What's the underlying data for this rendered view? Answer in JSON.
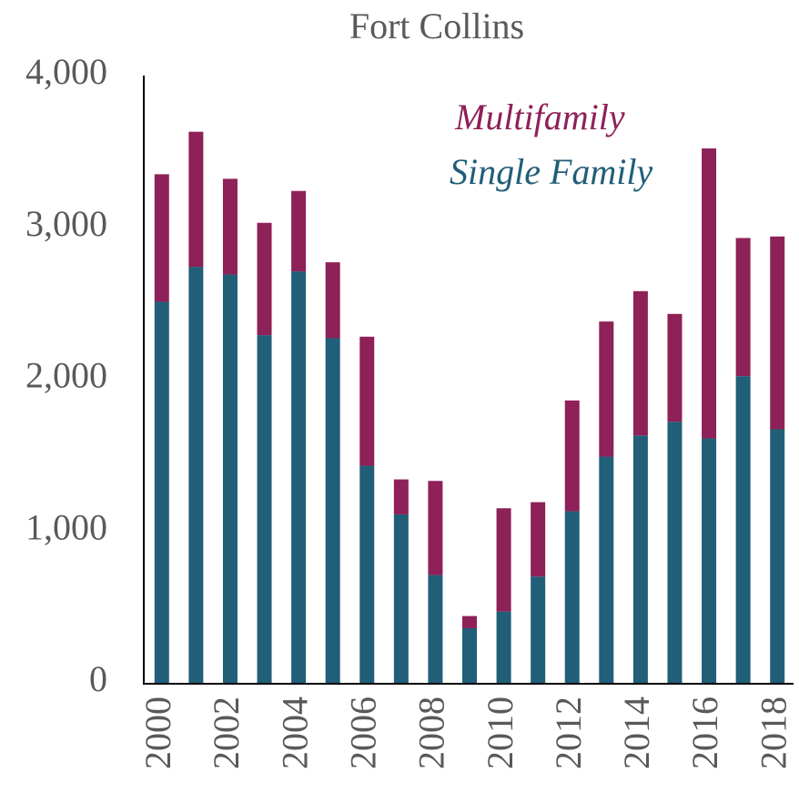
{
  "chart_data": {
    "type": "stacked_bar",
    "title": "Fort Collins",
    "categories": [
      "2000",
      null,
      "2002",
      null,
      "2004",
      null,
      "2006",
      null,
      "2008",
      null,
      "2010",
      null,
      "2012",
      null,
      "2014",
      null,
      "2016",
      null,
      "2018"
    ],
    "series": [
      {
        "name": "Single Family",
        "color": "#215e78",
        "values": [
          2510,
          2740,
          2690,
          2290,
          2710,
          2270,
          1430,
          1110,
          710,
          360,
          470,
          700,
          1130,
          1490,
          1630,
          1720,
          1610,
          2020,
          1670
        ]
      },
      {
        "name": "Multifamily",
        "color": "#8e2157",
        "values": [
          840,
          890,
          630,
          740,
          530,
          500,
          850,
          230,
          620,
          80,
          680,
          490,
          730,
          890,
          950,
          710,
          1910,
          910,
          1270
        ]
      }
    ],
    "ylim": [
      0,
      4000
    ],
    "yticks": [
      0,
      {
        "value": 1000,
        "label": "1,000"
      },
      {
        "value": 2000,
        "label": "2,000"
      },
      {
        "value": 3000,
        "label": "3,000"
      },
      {
        "value": 4000,
        "label": "4,000"
      }
    ]
  }
}
